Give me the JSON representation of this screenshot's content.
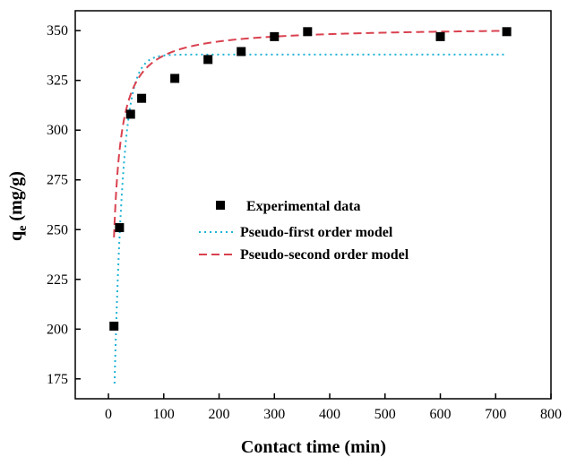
{
  "chart_data": {
    "type": "scatter",
    "title": "",
    "xlabel": "Contact time (min)",
    "ylabel_main": "q",
    "ylabel_sub": "e",
    "ylabel_unit": " (mg/g)",
    "xlim": [
      -60,
      800
    ],
    "ylim": [
      165,
      360
    ],
    "xticks": [
      0,
      100,
      200,
      300,
      400,
      500,
      600,
      700,
      800
    ],
    "yticks": [
      175,
      200,
      225,
      250,
      275,
      300,
      325,
      350
    ],
    "grid": false,
    "legend_position": "center",
    "series": [
      {
        "name": "Experimental data",
        "kind": "points",
        "color": "#000000",
        "x": [
          10,
          20,
          40,
          60,
          120,
          180,
          240,
          300,
          360,
          600,
          720
        ],
        "y": [
          201.5,
          251,
          308,
          316,
          326,
          335.5,
          339.5,
          347,
          349.5,
          347,
          349.5
        ]
      },
      {
        "name": "Pseudo-first order model",
        "kind": "line",
        "style": "dotted",
        "color": "#1fb3d6",
        "model": "pfo",
        "qe": 338,
        "k1": 0.065,
        "x0": 7,
        "x1": 720
      },
      {
        "name": "Pseudo-second order model",
        "kind": "line",
        "style": "dashed",
        "color": "#d9414f",
        "model": "pso",
        "qe": 352,
        "k2": 0.00066,
        "x0": 10,
        "x1": 720
      }
    ]
  }
}
